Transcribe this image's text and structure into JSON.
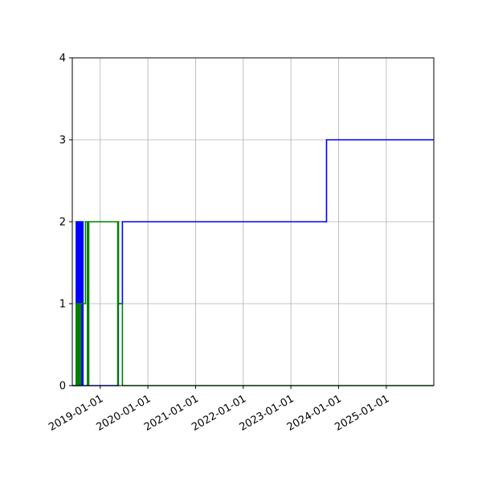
{
  "chart_data": {
    "type": "line",
    "title": "",
    "xlabel": "",
    "ylabel": "",
    "x_axis": "date",
    "xlim": [
      "2018-06-01",
      "2025-12-31"
    ],
    "ylim": [
      0,
      4
    ],
    "grid": true,
    "legend": "none",
    "xticks": [
      "2019-01-01",
      "2020-01-01",
      "2021-01-01",
      "2022-01-01",
      "2023-01-01",
      "2024-01-01",
      "2025-01-01"
    ],
    "yticks": [
      "0",
      "1",
      "2",
      "3",
      "4"
    ],
    "series": [
      {
        "color": "#0000ff",
        "step": "post",
        "points": [
          [
            "2018-06-01",
            0
          ],
          [
            "2018-07-01",
            2
          ],
          [
            "2018-07-05",
            0
          ],
          [
            "2018-07-09",
            2
          ],
          [
            "2018-07-13",
            0
          ],
          [
            "2018-07-17",
            2
          ],
          [
            "2018-07-21",
            0
          ],
          [
            "2018-07-25",
            2
          ],
          [
            "2018-07-29",
            0
          ],
          [
            "2018-08-02",
            2
          ],
          [
            "2018-08-06",
            0
          ],
          [
            "2018-08-10",
            2
          ],
          [
            "2018-08-14",
            0
          ],
          [
            "2018-08-18",
            2
          ],
          [
            "2018-08-22",
            0
          ],
          [
            "2018-09-01",
            0
          ],
          [
            "2019-05-20",
            1
          ],
          [
            "2019-06-20",
            2
          ],
          [
            "2023-10-01",
            3
          ],
          [
            "2025-12-31",
            3
          ]
        ]
      },
      {
        "color": "#008000",
        "step": "post",
        "points": [
          [
            "2018-06-01",
            0
          ],
          [
            "2018-07-01",
            1
          ],
          [
            "2018-07-04",
            0
          ],
          [
            "2018-07-08",
            1
          ],
          [
            "2018-07-11",
            0
          ],
          [
            "2018-07-15",
            1
          ],
          [
            "2018-07-18",
            0
          ],
          [
            "2018-07-22",
            1
          ],
          [
            "2018-07-25",
            0
          ],
          [
            "2018-07-29",
            1
          ],
          [
            "2018-08-01",
            0
          ],
          [
            "2018-08-05",
            1
          ],
          [
            "2018-09-10",
            2
          ],
          [
            "2018-09-25",
            0
          ],
          [
            "2018-10-05",
            2
          ],
          [
            "2019-05-15",
            0
          ],
          [
            "2019-05-18",
            2
          ],
          [
            "2019-05-21",
            1
          ],
          [
            "2019-06-20",
            0
          ],
          [
            "2025-12-31",
            0
          ]
        ]
      }
    ]
  }
}
